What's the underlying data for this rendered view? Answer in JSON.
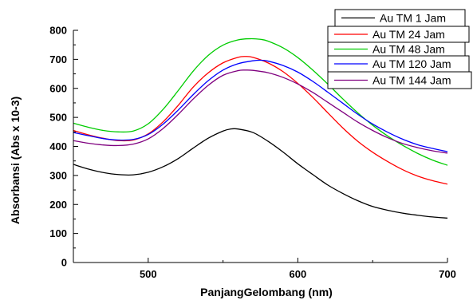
{
  "chart_data": {
    "type": "line",
    "xlabel": "PanjangGelombang (nm)",
    "ylabel": "Absorbansi (Abs x 10-3)",
    "xlim": [
      450,
      700
    ],
    "ylim": [
      0,
      800
    ],
    "x_ticks": [
      500,
      600,
      700
    ],
    "y_ticks": [
      0,
      100,
      200,
      300,
      400,
      500,
      600,
      700,
      800
    ],
    "grid": false,
    "legend_position": "top-right",
    "series": [
      {
        "name": "Au TM 1 Jam",
        "color": "#000000",
        "x": [
          450,
          460,
          470,
          480,
          490,
          500,
          510,
          520,
          530,
          540,
          550,
          555,
          560,
          570,
          580,
          590,
          600,
          610,
          620,
          630,
          640,
          650,
          660,
          670,
          680,
          690,
          700
        ],
        "y": [
          338,
          322,
          310,
          303,
          302,
          311,
          330,
          358,
          394,
          428,
          453,
          460,
          460,
          448,
          418,
          381,
          340,
          303,
          267,
          238,
          213,
          193,
          180,
          170,
          163,
          157,
          153
        ]
      },
      {
        "name": "Au TM 24 Jam",
        "color": "#ff0000",
        "x": [
          450,
          460,
          470,
          480,
          490,
          500,
          510,
          520,
          530,
          540,
          550,
          560,
          565,
          570,
          580,
          590,
          600,
          610,
          620,
          630,
          640,
          650,
          660,
          670,
          680,
          690,
          700
        ],
        "y": [
          455,
          440,
          428,
          420,
          422,
          443,
          485,
          541,
          604,
          653,
          688,
          707,
          710,
          707,
          688,
          658,
          617,
          569,
          516,
          464,
          418,
          380,
          348,
          320,
          298,
          282,
          270
        ]
      },
      {
        "name": "Au TM 48 Jam",
        "color": "#00cc00",
        "x": [
          450,
          460,
          470,
          480,
          490,
          500,
          510,
          520,
          530,
          540,
          550,
          560,
          568,
          575,
          580,
          590,
          600,
          610,
          620,
          630,
          640,
          650,
          660,
          670,
          680,
          690,
          700
        ],
        "y": [
          480,
          466,
          455,
          450,
          453,
          478,
          528,
          592,
          659,
          713,
          749,
          767,
          771,
          769,
          763,
          740,
          706,
          663,
          615,
          564,
          516,
          473,
          436,
          404,
          376,
          353,
          335
        ]
      },
      {
        "name": "Au TM 120 Jam",
        "color": "#0000ff",
        "x": [
          450,
          460,
          470,
          480,
          490,
          500,
          510,
          520,
          530,
          540,
          550,
          560,
          570,
          575,
          580,
          590,
          600,
          610,
          620,
          630,
          640,
          650,
          660,
          670,
          680,
          690,
          700
        ],
        "y": [
          448,
          437,
          427,
          422,
          424,
          441,
          477,
          525,
          578,
          626,
          663,
          685,
          695,
          697,
          694,
          679,
          656,
          624,
          587,
          549,
          511,
          477,
          449,
          425,
          406,
          393,
          382
        ]
      },
      {
        "name": "Au TM 144 Jam",
        "color": "#7f007f",
        "x": [
          450,
          460,
          470,
          480,
          490,
          500,
          510,
          520,
          530,
          540,
          550,
          560,
          565,
          570,
          580,
          590,
          600,
          610,
          620,
          630,
          640,
          650,
          660,
          670,
          680,
          690,
          700
        ],
        "y": [
          420,
          411,
          405,
          403,
          408,
          426,
          462,
          510,
          563,
          610,
          645,
          661,
          663,
          662,
          654,
          638,
          615,
          586,
          552,
          518,
          484,
          455,
          430,
          410,
          396,
          385,
          377
        ]
      }
    ]
  }
}
